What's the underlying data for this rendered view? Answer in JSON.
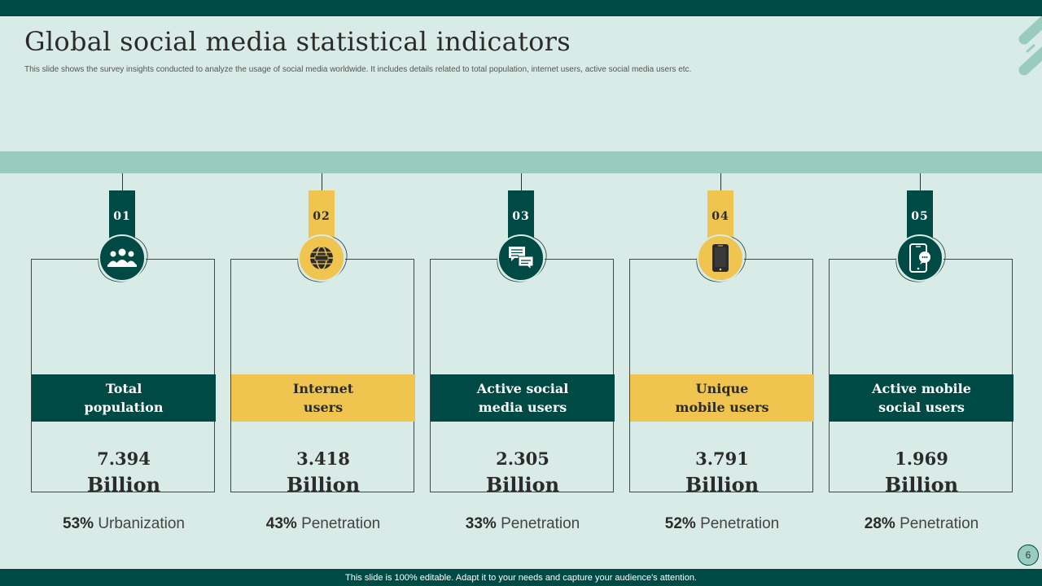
{
  "slide": {
    "title": "Global social media statistical indicators",
    "subtitle": "This slide shows the survey insights conducted to analyze the usage of social media  worldwide. It includes details related to total population, internet users, active social media users etc.",
    "page_number": "6",
    "footer": "This slide is 100% editable.  Adapt it to your needs and capture your audience's attention."
  },
  "colors": {
    "dark_green": "#004a45",
    "gold": "#efc44f",
    "light_bg": "#d9ebe6",
    "band": "#99ccbf"
  },
  "indicators": [
    {
      "num": "01",
      "label": "Total\npopulation",
      "value": "7.394",
      "unit": "Billion",
      "pct": "53%",
      "metric": "Urbanization",
      "icon": "people-group-icon",
      "theme": "dark"
    },
    {
      "num": "02",
      "label": "Internet\nusers",
      "value": "3.418",
      "unit": "Billion",
      "pct": "43%",
      "metric": "Penetration",
      "icon": "globe-icon",
      "theme": "gold"
    },
    {
      "num": "03",
      "label": "Active social\nmedia users",
      "value": "2.305",
      "unit": "Billion",
      "pct": "33%",
      "metric": "Penetration",
      "icon": "chat-bubbles-icon",
      "theme": "dark"
    },
    {
      "num": "04",
      "label": "Unique\nmobile users",
      "value": "3.791",
      "unit": "Billion",
      "pct": "52%",
      "metric": "Penetration",
      "icon": "smartphone-icon",
      "theme": "gold"
    },
    {
      "num": "05",
      "label": "Active mobile\nsocial users",
      "value": "1.969",
      "unit": "Billion",
      "pct": "28%",
      "metric": "Penetration",
      "icon": "mobile-chat-icon",
      "theme": "dark"
    }
  ]
}
